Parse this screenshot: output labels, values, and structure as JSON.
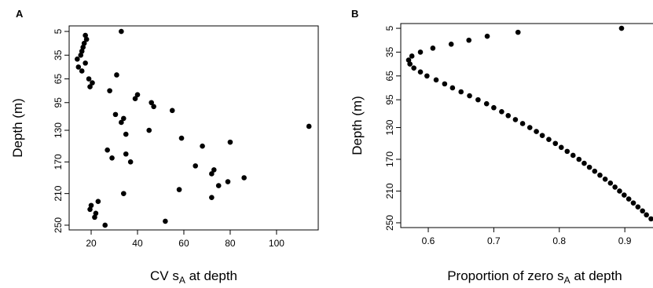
{
  "chart_data": [
    {
      "type": "scatter",
      "panel": "A",
      "color": "#000000",
      "x_label": [
        "CV s",
        "A",
        " at depth"
      ],
      "y_label": "Depth (m)",
      "xlim": [
        10.5,
        118
      ],
      "ylim": [
        256,
        -2
      ],
      "xticks": [
        20,
        40,
        60,
        80,
        100
      ],
      "yticks": [
        5,
        35,
        65,
        95,
        130,
        170,
        210,
        250
      ],
      "x": [
        33,
        17.5,
        18,
        17,
        16.5,
        16,
        15.5,
        14,
        17.5,
        14.5,
        16,
        31,
        19,
        20.5,
        19.5,
        28,
        40,
        39,
        46,
        47,
        55,
        30.5,
        34,
        33,
        114,
        45,
        35,
        59,
        80,
        68,
        27,
        35,
        29,
        37,
        65,
        73,
        72,
        86,
        79,
        75,
        58,
        34,
        72,
        23,
        20,
        19.5,
        22,
        21.5,
        52,
        26
      ],
      "y": [
        5,
        10,
        15,
        20,
        25,
        30,
        35,
        40,
        45,
        50,
        55,
        60,
        65,
        70,
        75,
        80,
        85,
        90,
        95,
        100,
        105,
        110,
        115,
        120,
        125,
        130,
        135,
        140,
        145,
        150,
        155,
        160,
        165,
        170,
        175,
        180,
        185,
        190,
        195,
        200,
        205,
        210,
        215,
        220,
        225,
        230,
        235,
        240,
        245,
        250
      ]
    },
    {
      "type": "scatter",
      "panel": "B",
      "color": "#000000",
      "x_label": [
        "Proportion of zero s",
        "A",
        " at depth"
      ],
      "y_label": "Depth (m)",
      "xlim": [
        0.558,
        0.955
      ],
      "ylim": [
        256,
        -1
      ],
      "xticks": [
        0.6,
        0.7,
        0.8,
        0.9
      ],
      "yticks": [
        5,
        35,
        65,
        95,
        130,
        170,
        210,
        250
      ],
      "x": [
        0.895,
        0.737,
        0.69,
        0.662,
        0.635,
        0.607,
        0.588,
        0.575,
        0.57,
        0.572,
        0.578,
        0.588,
        0.598,
        0.612,
        0.625,
        0.637,
        0.65,
        0.663,
        0.676,
        0.689,
        0.7,
        0.712,
        0.722,
        0.733,
        0.744,
        0.755,
        0.765,
        0.774,
        0.784,
        0.794,
        0.803,
        0.812,
        0.821,
        0.83,
        0.838,
        0.846,
        0.854,
        0.862,
        0.87,
        0.878,
        0.885,
        0.892,
        0.899,
        0.906,
        0.913,
        0.92,
        0.927,
        0.933,
        0.94,
        0.947
      ],
      "y": [
        5,
        10,
        15,
        20,
        25,
        30,
        35,
        40,
        45,
        50,
        55,
        60,
        65,
        70,
        75,
        80,
        85,
        90,
        95,
        100,
        105,
        110,
        115,
        120,
        125,
        130,
        135,
        140,
        145,
        150,
        155,
        160,
        165,
        170,
        175,
        180,
        185,
        190,
        195,
        200,
        205,
        210,
        215,
        220,
        225,
        230,
        235,
        240,
        245,
        250
      ]
    }
  ]
}
